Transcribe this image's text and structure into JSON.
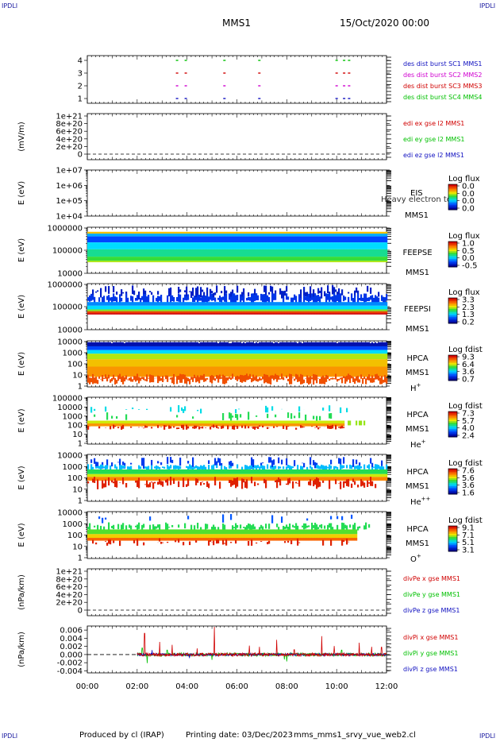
{
  "corners": {
    "tl": "IPDLI",
    "tr": "IPDLI",
    "bl": "IPDLI",
    "br": "IPDLI"
  },
  "header": {
    "mission": "MMS1",
    "date": "15/Oct/2020 00:00"
  },
  "footer": {
    "produced": "Produced by cl (IRAP)",
    "printing": "Printing date: 03/Dec/2023",
    "file": "mms_mms1_srvy_vue_web2.cl"
  },
  "colors": {
    "c1": "#1010c0",
    "c2": "#d000d0",
    "c3": "#d00000",
    "c4": "#00c000",
    "x": "#d00000",
    "y": "#00c000",
    "z": "#1010c0"
  },
  "chart_data": [
    {
      "type": "scatter",
      "yticks": [
        "1",
        "2",
        "3",
        "4"
      ],
      "xticks": [
        "00:00",
        "02:00",
        "04:00",
        "06:00",
        "08:00",
        "10:00",
        "12:00"
      ],
      "xlim_hours": [
        0,
        12
      ],
      "legend": [
        "des dist burst SC1 MMS1",
        "des dist burst SC2 MMS2",
        "des dist burst SC3 MMS3",
        "des dist burst SC4 MMS4"
      ],
      "series": [
        {
          "name": "des dist burst SC1 MMS1",
          "level": 1,
          "x": [
            3.6,
            3.95,
            5.5,
            6.9,
            10.0,
            10.3,
            10.5
          ]
        },
        {
          "name": "des dist burst SC2 MMS2",
          "level": 2,
          "x": [
            3.6,
            3.95,
            5.5,
            6.9,
            10.0,
            10.3,
            10.5
          ]
        },
        {
          "name": "des dist burst SC3 MMS3",
          "level": 3,
          "x": [
            3.6,
            3.95,
            5.5,
            6.9,
            10.0,
            10.3,
            10.5
          ]
        },
        {
          "name": "des dist burst SC4 MMS4",
          "level": 4,
          "x": [
            3.6,
            3.95,
            5.5,
            6.9,
            10.0,
            10.3,
            10.5
          ]
        }
      ]
    },
    {
      "type": "line",
      "ylabel": "(mV/m)",
      "yticks": [
        "1e+21",
        "8e+20",
        "6e+20",
        "4e+20",
        "2e+20",
        "0"
      ],
      "legend": [
        "edi ex gse l2 MMS1",
        "edi ey gse l2 MMS1",
        "edi ez gse l2 MMS1"
      ],
      "series": []
    },
    {
      "type": "heatmap",
      "ylabel": "E (eV)",
      "yticks": [
        "1e+07",
        "1e+06",
        "1e+05",
        "1e+04"
      ],
      "instrument": [
        "EIS",
        "MMS1"
      ],
      "overlay": "Heavy electron to",
      "cbar_title": "Log flux",
      "cbar_ticks": [
        "0.0",
        "0.0",
        "0.0",
        "0.0"
      ]
    },
    {
      "type": "heatmap",
      "ylabel": "E (eV)",
      "yticks": [
        "1000000",
        "100000",
        "10000"
      ],
      "instrument": [
        "FEEPSE",
        "MMS1"
      ],
      "cbar_title": "Log flux",
      "cbar_ticks": [
        "1.0",
        "0.5",
        "0.0",
        "-0.5"
      ]
    },
    {
      "type": "heatmap",
      "ylabel": "E (eV)",
      "yticks": [
        "1000000",
        "100000",
        "10000"
      ],
      "instrument": [
        "FEEPSI",
        "MMS1"
      ],
      "cbar_title": "Log flux",
      "cbar_ticks": [
        "3.3",
        "2.3",
        "1.3",
        "0.2"
      ]
    },
    {
      "type": "heatmap",
      "ylabel": "E (eV)",
      "yticks": [
        "10000",
        "1000",
        "100",
        "10",
        "1"
      ],
      "instrument": [
        "HPCA",
        "MMS1"
      ],
      "species": "H",
      "charge": "+",
      "cbar_title": "Log fdist",
      "cbar_ticks": [
        "9.3",
        "6.4",
        "3.6",
        "0.7"
      ]
    },
    {
      "type": "heatmap",
      "ylabel": "E (eV)",
      "yticks": [
        "100000",
        "10000",
        "1000",
        "100",
        "10",
        "1"
      ],
      "instrument": [
        "HPCA",
        "MMS1"
      ],
      "species": "He",
      "charge": "+",
      "cbar_title": "Log fdist",
      "cbar_ticks": [
        "7.3",
        "5.7",
        "4.0",
        "2.4"
      ]
    },
    {
      "type": "heatmap",
      "ylabel": "E (eV)",
      "yticks": [
        "10000",
        "1000",
        "100",
        "10",
        "1"
      ],
      "instrument": [
        "HPCA",
        "MMS1"
      ],
      "species": "He",
      "charge": "++",
      "cbar_title": "Log fdist",
      "cbar_ticks": [
        "7.6",
        "5.6",
        "3.6",
        "1.6"
      ]
    },
    {
      "type": "heatmap",
      "ylabel": "E (eV)",
      "yticks": [
        "10000",
        "1000",
        "100",
        "10",
        "1"
      ],
      "instrument": [
        "HPCA",
        "MMS1"
      ],
      "species": "O",
      "charge": "+",
      "cbar_title": "Log fdist",
      "cbar_ticks": [
        "9.1",
        "7.1",
        "5.1",
        "3.1"
      ]
    },
    {
      "type": "line",
      "ylabel": "(nPa/km)",
      "yticks": [
        "1e+21",
        "8e+20",
        "6e+20",
        "4e+20",
        "2e+20",
        "0"
      ],
      "legend": [
        "divPe x gse MMS1",
        "divPe y gse MMS1",
        "divPe z gse MMS1"
      ],
      "series": []
    },
    {
      "type": "line",
      "ylabel": "(nPa/km)",
      "yticks": [
        "0.006",
        "0.004",
        "0.002",
        "0.000",
        "-0.002",
        "-0.004"
      ],
      "ylim": [
        -0.0045,
        0.007
      ],
      "xlim_hours": [
        0,
        12
      ],
      "data_start_hour": 2.0,
      "legend": [
        "divPi x gse MMS1",
        "divPi y gse MMS1",
        "divPi z gse MMS1"
      ],
      "series": [
        {
          "name": "divPi x gse MMS1",
          "baseline": 0.0,
          "noise": 0.0004,
          "spikes": [
            [
              2.3,
              0.0052
            ],
            [
              2.9,
              0.0031
            ],
            [
              3.4,
              0.0024
            ],
            [
              4.4,
              0.0015
            ],
            [
              5.1,
              0.0068
            ],
            [
              6.5,
              0.0022
            ],
            [
              6.9,
              0.0019
            ],
            [
              7.6,
              0.0036
            ],
            [
              8.3,
              0.0012
            ],
            [
              9.4,
              0.0045
            ],
            [
              9.9,
              0.0021
            ],
            [
              10.9,
              0.0029
            ],
            [
              11.4,
              0.0019
            ],
            [
              11.8,
              0.0018
            ]
          ]
        },
        {
          "name": "divPi y gse MMS1",
          "baseline": 0.0,
          "noise": 0.0004,
          "spikes": [
            [
              2.2,
              0.0016
            ],
            [
              2.4,
              -0.0021
            ],
            [
              3.2,
              0.0011
            ],
            [
              5.0,
              -0.0013
            ],
            [
              7.9,
              -0.0012
            ],
            [
              8.0,
              -0.0017
            ],
            [
              10.2,
              0.0011
            ]
          ]
        },
        {
          "name": "divPi z gse MMS1",
          "baseline": 0.0,
          "noise": 0.0003,
          "spikes": [
            [
              2.6,
              0.0011
            ],
            [
              4.1,
              -0.0009
            ]
          ]
        }
      ]
    }
  ]
}
